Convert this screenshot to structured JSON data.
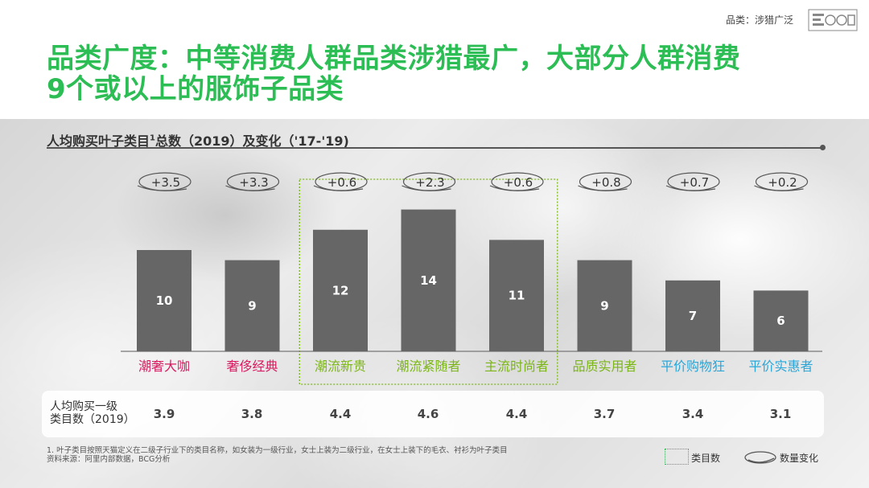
{
  "header": {
    "tag": "品类：涉猎广泛",
    "title_line1": "品类广度：中等消费人群品类涉猎最广，大部分人群消费",
    "title_line2": "9个或以上的服饰子品类"
  },
  "subtitle": {
    "text_a": "人均购买叶子类目",
    "sup": "1",
    "text_b": "总数（2019）及变化（'17-'19)"
  },
  "colors": {
    "title_green": "#2dbd55",
    "bar": "#666666",
    "high_end": "#d81b60",
    "trend": "#7cb518",
    "value": "#2aa6d8"
  },
  "chart_data": {
    "type": "bar",
    "title": "人均购买叶子类目总数（2019）及变化（'17-'19)",
    "categories": [
      "潮奢大咖",
      "奢侈经典",
      "潮流新贵",
      "潮流紧随者",
      "主流时尚者",
      "品质实用者",
      "平价购物狂",
      "平价实惠者"
    ],
    "category_colors": [
      "#d81b60",
      "#d81b60",
      "#7cb518",
      "#7cb518",
      "#7cb518",
      "#7cb518",
      "#2aa6d8",
      "#2aa6d8"
    ],
    "values": [
      10,
      9,
      12,
      14,
      11,
      9,
      7,
      6
    ],
    "changes": [
      "+3.5",
      "+3.3",
      "+0.6",
      "+2.3",
      "+0.6",
      "+0.8",
      "+0.7",
      "+0.2"
    ],
    "highlighted_categories": [
      "潮流新贵",
      "潮流紧随者",
      "主流时尚者"
    ],
    "ylim": [
      0,
      14
    ],
    "grid": false
  },
  "stats": {
    "label_line1": "人均购买一级",
    "label_line2": "类目数（2019）",
    "values": [
      "3.9",
      "3.8",
      "4.4",
      "4.6",
      "4.4",
      "3.7",
      "3.4",
      "3.1"
    ]
  },
  "footnote": {
    "line1": "1. 叶子类目按照天猫定义在二级子行业下的类目名称，如女装为一级行业，女士上装为二级行业，在女士上装下的毛衣、衬衫为叶子类目",
    "line2": "资料来源：阿里内部数据，BCG分析"
  },
  "legend": {
    "box_label": "类目数",
    "oval_label": "数量变化"
  }
}
